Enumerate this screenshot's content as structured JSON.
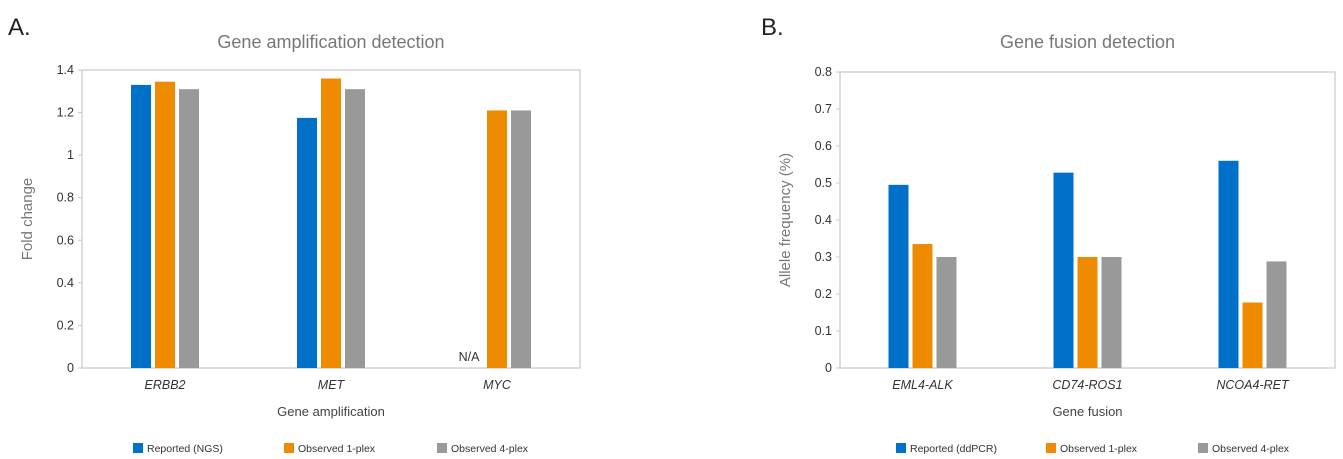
{
  "panels": [
    {
      "label": "A.",
      "chart_data": {
        "type": "bar",
        "title": "Gene amplification detection",
        "xlabel": "Gene amplification",
        "ylabel": "Fold change",
        "categories": [
          "ERBB2",
          "MET",
          "MYC"
        ],
        "series": [
          {
            "name": "Reported (NGS)",
            "color": "#0070c8",
            "values": [
              1.33,
              1.175,
              null
            ]
          },
          {
            "name": "Observed 1-plex",
            "color": "#ee8b00",
            "values": [
              1.345,
              1.36,
              1.21
            ]
          },
          {
            "name": "Observed 4-plex",
            "color": "#999999",
            "values": [
              1.31,
              1.31,
              1.21
            ]
          }
        ],
        "ylim": [
          0,
          1.4
        ],
        "yticks": [
          0,
          0.2,
          0.4,
          0.6,
          0.8,
          1,
          1.2,
          1.4
        ],
        "ytick_labels": [
          "0",
          "0.2",
          "0.4",
          "0.6",
          "0.8",
          "1",
          "1.2",
          "1.4"
        ],
        "annotations": [
          {
            "category": "MYC",
            "series": "Reported (NGS)",
            "text": "N/A"
          }
        ],
        "legend_position": "bottom",
        "grid": false
      }
    },
    {
      "label": "B.",
      "chart_data": {
        "type": "bar",
        "title": "Gene fusion detection",
        "xlabel": "Gene fusion",
        "ylabel": "Allele frequency (%)",
        "categories": [
          "EML4-ALK",
          "CD74-ROS1",
          "NCOA4-RET"
        ],
        "series": [
          {
            "name": "Reported (ddPCR)",
            "color": "#0070c8",
            "values": [
              0.495,
              0.528,
              0.56
            ]
          },
          {
            "name": "Observed 1-plex",
            "color": "#ee8b00",
            "values": [
              0.335,
              0.3,
              0.177
            ]
          },
          {
            "name": "Observed 4-plex",
            "color": "#999999",
            "values": [
              0.3,
              0.3,
              0.288
            ]
          }
        ],
        "ylim": [
          0,
          0.8
        ],
        "yticks": [
          0,
          0.1,
          0.2,
          0.3,
          0.4,
          0.5,
          0.6,
          0.7,
          0.8
        ],
        "ytick_labels": [
          "0",
          "0.1",
          "0.2",
          "0.3",
          "0.4",
          "0.5",
          "0.6",
          "0.7",
          "0.8"
        ],
        "annotations": [],
        "legend_position": "bottom",
        "grid": false
      }
    }
  ]
}
